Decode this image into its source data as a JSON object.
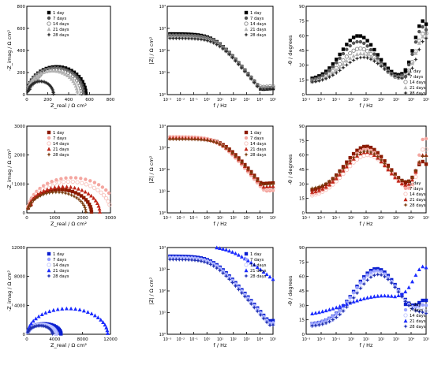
{
  "legend_labels": [
    "1 day",
    "7 days",
    "14 days",
    "21 days",
    "28 days"
  ],
  "labels": {
    "nyquist_x": "Z_real / Ω cm²",
    "nyquist_y": "-Z_imag / Ω cm²",
    "bode_mod_x": "f / Hz",
    "bode_mod_y": "|Z| / Ω cm²",
    "bode_phase_x": "f / Hz",
    "bode_phase_y": "-θ / degrees"
  },
  "palettes": {
    "black": [
      "#000000",
      "#555555",
      "#8a8a8a",
      "#b5b5b5",
      "#2a2a2a"
    ],
    "red": [
      "#8b1a00",
      "#f4a6a0",
      "#f7c3bd",
      "#c0271a",
      "#7a3d10"
    ],
    "blue": [
      "#0b1fd0",
      "#9aa3ff",
      "#c2c8ff",
      "#1a2bff",
      "#2030b0"
    ]
  },
  "chart_data": [
    {
      "type": "scatter",
      "panel": "nyquist-black",
      "xlabel": "Z_real / Ω cm²",
      "ylabel": "-Z_imag / Ω cm²",
      "xlim": [
        0,
        800
      ],
      "ylim": [
        0,
        800
      ],
      "xticks": [
        0,
        200,
        400,
        600,
        800
      ],
      "yticks": [
        0,
        200,
        400,
        600,
        800
      ],
      "series": [
        {
          "name": "1 day",
          "arc": {
            "r0": 5,
            "d": 560,
            "h": 0.45,
            "tail": 1.0
          }
        },
        {
          "name": "7 days",
          "arc": {
            "r0": 5,
            "d": 540,
            "h": 0.45,
            "tail": 1.0
          }
        },
        {
          "name": "14 days",
          "arc": {
            "r0": 5,
            "d": 520,
            "h": 0.44,
            "tail": 1.0
          }
        },
        {
          "name": "21 days",
          "arc": {
            "r0": 5,
            "d": 480,
            "h": 0.45,
            "tail": 1.0
          }
        },
        {
          "name": "28 days",
          "arc": {
            "r0": 5,
            "d": 250,
            "h": 0.48,
            "tail": 0.3
          }
        }
      ]
    },
    {
      "type": "line",
      "panel": "bode-mod-black",
      "xlabel": "f / Hz",
      "ylabel": "|Z| / Ω cm²",
      "xscale": "log",
      "yscale": "log",
      "xlim": [
        -3,
        5
      ],
      "ylim": [
        0,
        4
      ],
      "xtick_labels": [
        "10⁻³",
        "10⁻²",
        "10⁻¹",
        "10⁰",
        "10¹",
        "10²",
        "10³",
        "10⁴",
        "10⁵"
      ],
      "ytick_labels": [
        "10⁰",
        "10¹",
        "10²",
        "10³",
        "10⁴"
      ],
      "series": [
        {
          "name": "1 day",
          "lf": 2.75,
          "hf": 0.25,
          "corner": 1.0,
          "slope": 0.72
        },
        {
          "name": "7 days",
          "lf": 2.7,
          "hf": 0.3,
          "corner": 1.1,
          "slope": 0.72
        },
        {
          "name": "14 days",
          "lf": 2.65,
          "hf": 0.35,
          "corner": 1.1,
          "slope": 0.72
        },
        {
          "name": "21 days",
          "lf": 2.6,
          "hf": 0.3,
          "corner": 1.15,
          "slope": 0.72
        },
        {
          "name": "28 days",
          "lf": 2.55,
          "hf": 0.25,
          "corner": 1.2,
          "slope": 0.72
        }
      ]
    },
    {
      "type": "line",
      "panel": "bode-phase-black",
      "xlabel": "f / Hz",
      "ylabel": "-θ / degrees",
      "xscale": "log",
      "xlim": [
        -3,
        5
      ],
      "ylim": [
        0,
        90
      ],
      "xtick_labels": [
        "10⁻³",
        "10⁻²",
        "10⁻¹",
        "10⁰",
        "10¹",
        "10²",
        "10³",
        "10⁴",
        "10⁵"
      ],
      "yticks": [
        0,
        15,
        30,
        45,
        60,
        75,
        90
      ],
      "series": [
        {
          "name": "1 day",
          "base": 15,
          "p1": {
            "a": 45,
            "c": 0.5,
            "w": 1.2
          },
          "rise": {
            "a": 60,
            "c": 4.8,
            "w": 0.6
          }
        },
        {
          "name": "7 days",
          "base": 14,
          "p1": {
            "a": 40,
            "c": 0.5,
            "w": 1.2
          },
          "rise": {
            "a": 55,
            "c": 4.8,
            "w": 0.6
          }
        },
        {
          "name": "14 days",
          "base": 13,
          "p1": {
            "a": 34,
            "c": 0.6,
            "w": 1.2
          },
          "rise": {
            "a": 50,
            "c": 4.9,
            "w": 0.6
          }
        },
        {
          "name": "21 days",
          "base": 12,
          "p1": {
            "a": 30,
            "c": 0.7,
            "w": 1.3
          },
          "rise": {
            "a": 48,
            "c": 4.9,
            "w": 0.6
          }
        },
        {
          "name": "28 days",
          "base": 12,
          "p1": {
            "a": 26,
            "c": 0.8,
            "w": 1.3
          },
          "rise": {
            "a": 45,
            "c": 5.0,
            "w": 0.6
          }
        }
      ]
    },
    {
      "type": "scatter",
      "panel": "nyquist-red",
      "xlabel": "Z_real / Ω cm²",
      "ylabel": "-Z_imag / Ω cm²",
      "xlim": [
        0,
        3000
      ],
      "ylim": [
        0,
        3000
      ],
      "xticks": [
        0,
        1000,
        2000,
        3000
      ],
      "yticks": [
        0,
        1000,
        2000,
        3000
      ],
      "series": [
        {
          "name": "1 day",
          "arc": {
            "r0": 20,
            "d": 2300,
            "h": 0.35,
            "tail": 0.2
          }
        },
        {
          "name": "7 days",
          "arc": {
            "r0": 20,
            "d": 3200,
            "h": 0.38,
            "tail": 0.2
          }
        },
        {
          "name": "14 days",
          "arc": {
            "r0": 20,
            "d": 3000,
            "h": 0.36,
            "tail": 0.2
          }
        },
        {
          "name": "21 days",
          "arc": {
            "r0": 20,
            "d": 2600,
            "h": 0.35,
            "tail": 0.2
          }
        },
        {
          "name": "28 days",
          "arc": {
            "r0": 20,
            "d": 2100,
            "h": 0.34,
            "tail": 0.2
          }
        }
      ]
    },
    {
      "type": "line",
      "panel": "bode-mod-red",
      "xlabel": "f / Hz",
      "ylabel": "|Z| / Ω cm²",
      "xscale": "log",
      "yscale": "log",
      "xlim": [
        -3,
        5
      ],
      "ylim": [
        0,
        4
      ],
      "xtick_labels": [
        "10⁻³",
        "10⁻²",
        "10⁻¹",
        "10⁰",
        "10¹",
        "10²",
        "10³",
        "10⁴",
        "10⁵"
      ],
      "ytick_labels": [
        "10⁰",
        "10¹",
        "10²",
        "10³",
        "10⁴"
      ],
      "series": [
        {
          "name": "1 day",
          "lf": 3.45,
          "hf": 1.35,
          "corner": 1.6,
          "slope": 0.72
        },
        {
          "name": "7 days",
          "lf": 3.5,
          "hf": 1.0,
          "corner": 1.3,
          "slope": 0.72
        },
        {
          "name": "14 days",
          "lf": 3.5,
          "hf": 1.1,
          "corner": 1.3,
          "slope": 0.72
        },
        {
          "name": "21 days",
          "lf": 3.45,
          "hf": 1.2,
          "corner": 1.5,
          "slope": 0.72
        },
        {
          "name": "28 days",
          "lf": 3.4,
          "hf": 1.3,
          "corner": 1.6,
          "slope": 0.72
        }
      ]
    },
    {
      "type": "line",
      "panel": "bode-phase-red",
      "xlabel": "f / Hz",
      "ylabel": "-θ / degrees",
      "xscale": "log",
      "xlim": [
        -3,
        5
      ],
      "ylim": [
        0,
        90
      ],
      "xtick_labels": [
        "10⁻³",
        "10⁻²",
        "10⁻¹",
        "10⁰",
        "10¹",
        "10²",
        "10³",
        "10⁴",
        "10⁵"
      ],
      "yticks": [
        0,
        15,
        30,
        45,
        60,
        75,
        90
      ],
      "series": [
        {
          "name": "1 day",
          "base": 22,
          "p1": {
            "a": 47,
            "c": 1.0,
            "w": 1.4
          },
          "rise": {
            "a": 30,
            "c": 4.8,
            "w": 0.5
          }
        },
        {
          "name": "7 days",
          "base": 18,
          "p1": {
            "a": 48,
            "c": 1.0,
            "w": 1.4
          },
          "rise": {
            "a": 60,
            "c": 4.9,
            "w": 0.4
          }
        },
        {
          "name": "14 days",
          "base": 16,
          "p1": {
            "a": 44,
            "c": 1.1,
            "w": 1.5
          },
          "rise": {
            "a": 50,
            "c": 4.9,
            "w": 0.4
          }
        },
        {
          "name": "21 days",
          "base": 20,
          "p1": {
            "a": 43,
            "c": 1.0,
            "w": 1.4
          },
          "rise": {
            "a": 40,
            "c": 4.9,
            "w": 0.5
          }
        },
        {
          "name": "28 days",
          "base": 24,
          "p1": {
            "a": 40,
            "c": 1.0,
            "w": 1.4
          },
          "rise": {
            "a": 35,
            "c": 4.9,
            "w": 0.5
          }
        }
      ]
    },
    {
      "type": "scatter",
      "panel": "nyquist-blue",
      "xlabel": "Z_real / Ω cm²",
      "ylabel": "-Z_imag / Ω cm²",
      "xlim": [
        0,
        12000
      ],
      "ylim": [
        0,
        12000
      ],
      "xticks": [
        0,
        4000,
        8000,
        12000
      ],
      "yticks": [
        0,
        4000,
        8000,
        12000
      ],
      "series": [
        {
          "name": "1 day",
          "arc": {
            "r0": 100,
            "d": 4800,
            "h": 0.3,
            "tail": 0
          }
        },
        {
          "name": "7 days",
          "arc": {
            "r0": 100,
            "d": 4200,
            "h": 0.32,
            "tail": 0
          }
        },
        {
          "name": "14 days",
          "arc": {
            "r0": 100,
            "d": 4000,
            "h": 0.33,
            "tail": 0
          }
        },
        {
          "name": "21 days",
          "arc": {
            "r0": 100,
            "d": 11500,
            "h": 0.31,
            "tail": 0
          }
        },
        {
          "name": "28 days",
          "arc": {
            "r0": 100,
            "d": 3600,
            "h": 0.33,
            "tail": 0
          }
        }
      ]
    },
    {
      "type": "line",
      "panel": "bode-mod-blue",
      "xlabel": "f / Hz",
      "ylabel": "|Z| / Ω cm²",
      "xscale": "log",
      "yscale": "log",
      "xlim": [
        -3,
        5
      ],
      "ylim": [
        0,
        4
      ],
      "xtick_labels": [
        "10⁻³",
        "10⁻²",
        "10⁻¹",
        "10⁰",
        "10¹",
        "10²",
        "10³",
        "10⁴",
        "10⁵"
      ],
      "ytick_labels": [
        "10⁰",
        "10¹",
        "10²",
        "10³",
        "10⁴"
      ],
      "series": [
        {
          "name": "1 day",
          "lf": 3.6,
          "hf": 0.6,
          "corner": 0.9,
          "slope": 0.72
        },
        {
          "name": "7 days",
          "lf": 3.55,
          "hf": 0.5,
          "corner": 0.9,
          "slope": 0.72
        },
        {
          "name": "14 days",
          "lf": 3.5,
          "hf": 0.45,
          "corner": 0.9,
          "slope": 0.72
        },
        {
          "name": "21 days",
          "lf": 4.1,
          "hf": 1.4,
          "corner": 2.3,
          "slope": 0.5
        },
        {
          "name": "28 days",
          "lf": 3.45,
          "hf": 0.4,
          "corner": 0.9,
          "slope": 0.72
        }
      ]
    },
    {
      "type": "line",
      "panel": "bode-phase-blue",
      "xlabel": "f / Hz",
      "ylabel": "-θ / degrees",
      "xscale": "log",
      "xlim": [
        -3,
        5
      ],
      "ylim": [
        0,
        90
      ],
      "xtick_labels": [
        "10⁻³",
        "10⁻²",
        "10⁻¹",
        "10⁰",
        "10¹",
        "10²",
        "10³",
        "10⁴",
        "10⁵"
      ],
      "yticks": [
        0,
        15,
        30,
        45,
        60,
        75,
        90
      ],
      "series": [
        {
          "name": "1 day",
          "base": 10,
          "p1": {
            "a": 58,
            "c": 1.7,
            "w": 1.5
          },
          "rise": {
            "a": 20,
            "c": 5.0,
            "w": 0.5
          }
        },
        {
          "name": "7 days",
          "base": 10,
          "p1": {
            "a": 56,
            "c": 1.7,
            "w": 1.5
          },
          "rise": {
            "a": 15,
            "c": 5.0,
            "w": 0.5
          }
        },
        {
          "name": "14 days",
          "base": 8,
          "p1": {
            "a": 55,
            "c": 1.8,
            "w": 1.5
          },
          "rise": {
            "a": 10,
            "c": 5.0,
            "w": 0.5
          }
        },
        {
          "name": "21 days",
          "base": 18,
          "p1": {
            "a": 22,
            "c": 2.2,
            "w": 2.5
          },
          "rise": {
            "a": 40,
            "c": 4.9,
            "w": 0.7
          }
        },
        {
          "name": "28 days",
          "base": 8,
          "p1": {
            "a": 54,
            "c": 1.8,
            "w": 1.5
          },
          "rise": {
            "a": 8,
            "c": 5.0,
            "w": 0.5
          }
        }
      ]
    }
  ]
}
